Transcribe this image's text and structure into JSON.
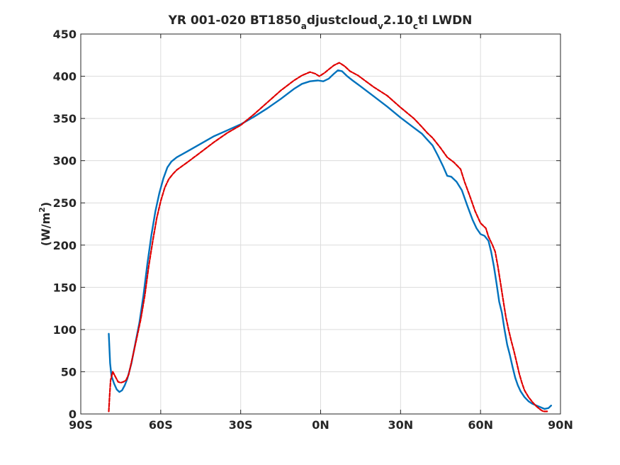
{
  "chart_data": {
    "type": "line",
    "title": {
      "parts": [
        {
          "text": "YR 001-020 BT1850",
          "sub": false
        },
        {
          "text": "a",
          "sub": true
        },
        {
          "text": "djustcloud",
          "sub": false
        },
        {
          "text": "v",
          "sub": true
        },
        {
          "text": "2.10",
          "sub": false
        },
        {
          "text": "c",
          "sub": true
        },
        {
          "text": "tl LWDN",
          "sub": false
        }
      ]
    },
    "ylabel": {
      "before": "(W/m",
      "sup": "2",
      "after": ")"
    },
    "xlabel": "",
    "xlim": [
      -90,
      90
    ],
    "ylim": [
      0,
      450
    ],
    "x_ticks": [
      {
        "value": -90,
        "label": "90S"
      },
      {
        "value": -60,
        "label": "60S"
      },
      {
        "value": -30,
        "label": "30S"
      },
      {
        "value": 0,
        "label": "0N"
      },
      {
        "value": 30,
        "label": "30N"
      },
      {
        "value": 60,
        "label": "60N"
      },
      {
        "value": 90,
        "label": "90N"
      }
    ],
    "y_ticks": [
      0,
      50,
      100,
      150,
      200,
      250,
      300,
      350,
      400,
      450
    ],
    "grid": true,
    "legend": "none",
    "series": [
      {
        "color": "#0072BD",
        "style": "solid",
        "points": [
          [
            -79.5,
            95
          ],
          [
            -79.0,
            60
          ],
          [
            -78.5,
            45
          ],
          [
            -77.5,
            36
          ],
          [
            -76.5,
            29
          ],
          [
            -75.5,
            26
          ],
          [
            -74.5,
            28
          ],
          [
            -73.5,
            34
          ],
          [
            -72.5,
            42
          ],
          [
            -71.0,
            60
          ],
          [
            -69.5,
            84
          ],
          [
            -68.0,
            108
          ],
          [
            -66.5,
            140
          ],
          [
            -65.0,
            178
          ],
          [
            -63.5,
            212
          ],
          [
            -62.0,
            240
          ],
          [
            -60.5,
            262
          ],
          [
            -59.0,
            279
          ],
          [
            -57.5,
            292
          ],
          [
            -56.0,
            299
          ],
          [
            -54.0,
            304
          ],
          [
            -50.0,
            311
          ],
          [
            -45.0,
            320
          ],
          [
            -40.0,
            329
          ],
          [
            -35.0,
            336
          ],
          [
            -30.0,
            343
          ],
          [
            -25.0,
            352
          ],
          [
            -20.0,
            362
          ],
          [
            -15.0,
            373
          ],
          [
            -10.0,
            385
          ],
          [
            -7.0,
            391
          ],
          [
            -4.0,
            394
          ],
          [
            -1.0,
            395
          ],
          [
            1.0,
            394
          ],
          [
            3.0,
            397
          ],
          [
            5.0,
            403
          ],
          [
            6.5,
            407
          ],
          [
            8.0,
            406
          ],
          [
            10.0,
            400
          ],
          [
            12.0,
            395
          ],
          [
            15.0,
            388
          ],
          [
            20.0,
            376
          ],
          [
            25.0,
            364
          ],
          [
            30.0,
            351
          ],
          [
            35.0,
            339
          ],
          [
            38.0,
            332
          ],
          [
            40.0,
            325
          ],
          [
            42.0,
            318
          ],
          [
            44.0,
            306
          ],
          [
            46.0,
            293
          ],
          [
            47.5,
            282
          ],
          [
            49.0,
            281
          ],
          [
            51.0,
            275
          ],
          [
            53.0,
            265
          ],
          [
            55.0,
            247
          ],
          [
            57.0,
            230
          ],
          [
            58.5,
            220
          ],
          [
            60.0,
            213
          ],
          [
            61.5,
            211
          ],
          [
            63.0,
            205
          ],
          [
            64.0,
            192
          ],
          [
            65.0,
            175
          ],
          [
            66.0,
            155
          ],
          [
            67.0,
            133
          ],
          [
            68.0,
            120
          ],
          [
            69.0,
            100
          ],
          [
            70.0,
            82
          ],
          [
            71.0,
            70
          ],
          [
            72.0,
            56
          ],
          [
            73.0,
            43
          ],
          [
            74.0,
            34
          ],
          [
            75.0,
            27
          ],
          [
            76.5,
            20
          ],
          [
            78.0,
            15
          ],
          [
            79.5,
            12
          ],
          [
            81.0,
            10
          ],
          [
            82.5,
            8
          ],
          [
            84.0,
            6
          ],
          [
            85.5,
            7
          ],
          [
            86.5,
            10
          ]
        ]
      },
      {
        "color": "#E00000",
        "style": "dashed",
        "points": [
          [
            -79.5,
            3
          ],
          [
            -79.2,
            20
          ],
          [
            -78.8,
            40
          ],
          [
            -78.0,
            50
          ],
          [
            -77.0,
            44
          ],
          [
            -76.0,
            38
          ],
          [
            -75.0,
            37
          ],
          [
            -74.0,
            38
          ],
          [
            -73.0,
            40
          ],
          [
            -72.0,
            47
          ],
          [
            -70.5,
            68
          ],
          [
            -69.0,
            90
          ],
          [
            -67.5,
            112
          ],
          [
            -66.0,
            140
          ],
          [
            -64.5,
            175
          ],
          [
            -63.0,
            205
          ],
          [
            -61.5,
            232
          ],
          [
            -60.0,
            252
          ],
          [
            -58.5,
            268
          ],
          [
            -57.0,
            278
          ],
          [
            -55.5,
            284
          ],
          [
            -54.0,
            289
          ],
          [
            -50.0,
            298
          ],
          [
            -45.0,
            310
          ],
          [
            -40.0,
            322
          ],
          [
            -35.0,
            333
          ],
          [
            -30.0,
            342
          ],
          [
            -25.0,
            355
          ],
          [
            -20.0,
            369
          ],
          [
            -15.0,
            383
          ],
          [
            -10.0,
            395
          ],
          [
            -7.0,
            401
          ],
          [
            -4.0,
            405
          ],
          [
            -2.0,
            403
          ],
          [
            -0.5,
            400
          ],
          [
            1.5,
            404
          ],
          [
            3.0,
            408
          ],
          [
            5.0,
            413
          ],
          [
            7.0,
            416
          ],
          [
            9.0,
            412
          ],
          [
            11.0,
            406
          ],
          [
            14.0,
            401
          ],
          [
            17.0,
            394
          ],
          [
            20.0,
            387
          ],
          [
            25.0,
            377
          ],
          [
            30.0,
            363
          ],
          [
            35.0,
            350
          ],
          [
            38.0,
            340
          ],
          [
            40.0,
            333
          ],
          [
            42.0,
            327
          ],
          [
            45.0,
            315
          ],
          [
            47.5,
            304
          ],
          [
            50.0,
            298
          ],
          [
            52.5,
            290
          ],
          [
            54.0,
            275
          ],
          [
            56.0,
            258
          ],
          [
            58.0,
            240
          ],
          [
            60.0,
            226
          ],
          [
            62.0,
            220
          ],
          [
            63.0,
            210
          ],
          [
            64.5,
            200
          ],
          [
            65.5,
            192
          ],
          [
            66.5,
            175
          ],
          [
            67.5,
            155
          ],
          [
            68.5,
            135
          ],
          [
            69.5,
            115
          ],
          [
            70.5,
            100
          ],
          [
            71.5,
            87
          ],
          [
            72.5,
            75
          ],
          [
            73.5,
            62
          ],
          [
            74.5,
            48
          ],
          [
            75.5,
            37
          ],
          [
            76.5,
            28
          ],
          [
            78.0,
            20
          ],
          [
            79.5,
            14
          ],
          [
            81.0,
            9
          ],
          [
            82.5,
            5
          ],
          [
            83.5,
            3
          ],
          [
            85.0,
            3
          ]
        ]
      }
    ]
  }
}
